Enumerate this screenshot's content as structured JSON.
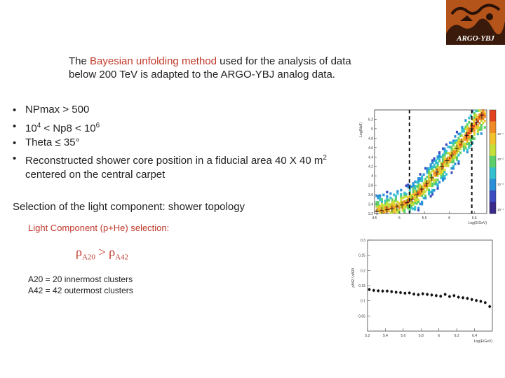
{
  "logo": {
    "text": "ARGO-YBJ"
  },
  "intro": {
    "line1_prefix": "The ",
    "line1_highlight": "Bayesian unfolding method",
    "line1_suffix": " used for the analysis of data",
    "line2": "below 200 TeV is adapted to the ARGO-YBJ analog data."
  },
  "bullets": {
    "b1": "NPmax > 500",
    "b2_base1": "10",
    "b2_exp1": "4",
    "b2_mid": " < Np8 < 10",
    "b2_exp2": "6",
    "b3": "Theta ≤ 35°",
    "b4_text": "Reconstructed shower core position in a fiducial area 40 X 40 m",
    "b4_exp": "2",
    "b4_line2": "centered on the central carpet"
  },
  "selection_title": "Selection of the light component: shower topology",
  "light_title": "Light Component (p+He) selection:",
  "formula": {
    "rho": "ρ",
    "sub1": "A20",
    "op": " > ",
    "sub2": "A42"
  },
  "clusters": {
    "a20": "A20 = 20 innermost clusters",
    "a42": "A42 = 42 outermost clusters"
  },
  "plot_top": {
    "ylabel": "Log(Np8)",
    "xlabel": "Log(E/GeV)",
    "x_ticks": [
      "4.5",
      "5",
      "5.5",
      "6",
      "6.5"
    ],
    "y_ticks": [
      "3.2",
      "3.4",
      "3.6",
      "3.8",
      "4",
      "4.2",
      "4.4",
      "4.6",
      "4.8",
      "5",
      "5.2"
    ],
    "colorbar_labels": [
      "10⁻¹",
      "10⁻²",
      "10⁻³",
      "10⁻⁴"
    ]
  },
  "plot_bottom": {
    "ylabel": "ρA42 / ρA20",
    "xlabel": "Log(E/GeV)",
    "y_ticks": [
      "0.3",
      "0.25",
      "0.2",
      "0.15",
      "0.1",
      "0.05"
    ],
    "x_ticks": [
      "5.2",
      "5.4",
      "5.6",
      "5.8",
      "6",
      "6.2",
      "6.4"
    ]
  },
  "chart_data": [
    {
      "type": "heatmap",
      "title": "",
      "xlabel": "Log(E/GeV)",
      "ylabel": "Log(Np8)",
      "xlim": [
        4.5,
        6.75
      ],
      "ylim": [
        3.2,
        5.4
      ],
      "cut_lines_x": [
        5.2,
        6.45
      ],
      "profile": {
        "x": [
          4.55,
          4.65,
          4.75,
          4.85,
          4.95,
          5.05,
          5.15,
          5.25,
          5.35,
          5.45,
          5.55,
          5.65,
          5.75,
          5.85,
          5.95,
          6.05,
          6.15,
          6.25,
          6.35,
          6.45,
          6.55,
          6.65
        ],
        "y": [
          3.24,
          3.26,
          3.28,
          3.3,
          3.34,
          3.38,
          3.43,
          3.5,
          3.6,
          3.72,
          3.84,
          3.96,
          4.08,
          4.2,
          4.32,
          4.44,
          4.58,
          4.72,
          4.86,
          5.0,
          5.14,
          5.28
        ]
      }
    },
    {
      "type": "scatter",
      "title": "",
      "xlabel": "Log(E/GeV)",
      "ylabel": "ρA42 / ρA20",
      "xlim": [
        5.2,
        6.6
      ],
      "ylim": [
        0.0,
        0.3
      ],
      "x": [
        5.22,
        5.27,
        5.32,
        5.37,
        5.42,
        5.47,
        5.52,
        5.57,
        5.62,
        5.67,
        5.72,
        5.77,
        5.82,
        5.87,
        5.92,
        5.97,
        6.02,
        6.07,
        6.12,
        6.17,
        6.22,
        6.27,
        6.32,
        6.37,
        6.42,
        6.47,
        6.52,
        6.57
      ],
      "y": [
        0.137,
        0.134,
        0.133,
        0.132,
        0.132,
        0.13,
        0.128,
        0.127,
        0.125,
        0.126,
        0.122,
        0.12,
        0.123,
        0.121,
        0.119,
        0.117,
        0.115,
        0.121,
        0.114,
        0.117,
        0.112,
        0.11,
        0.108,
        0.104,
        0.101,
        0.098,
        0.094,
        0.081
      ]
    }
  ]
}
